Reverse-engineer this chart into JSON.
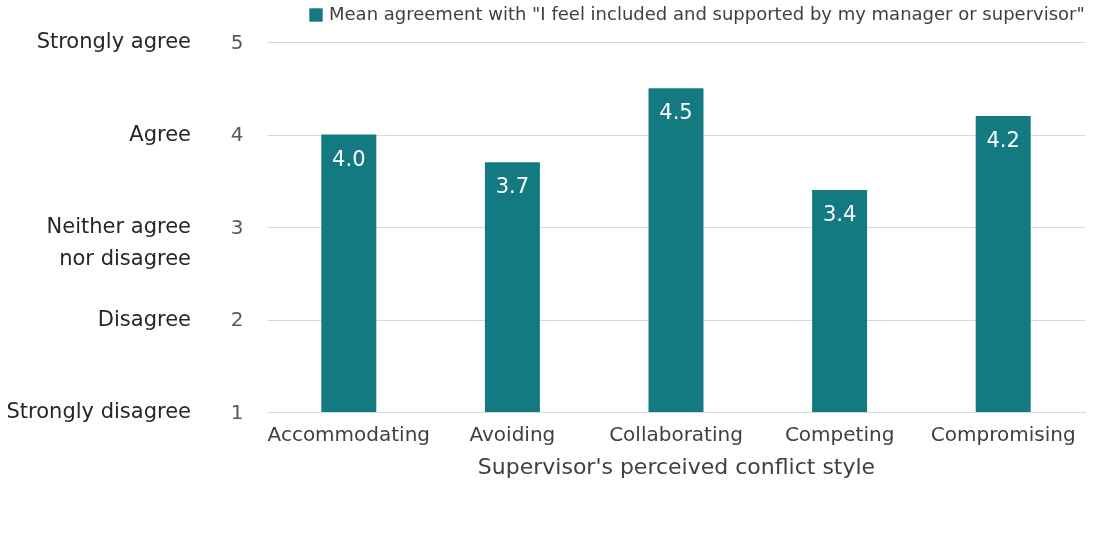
{
  "chart_data": {
    "type": "bar",
    "xlabel": "Supervisor's perceived conflict style",
    "categories": [
      "Accommodating",
      "Avoiding",
      "Collaborating",
      "Competing",
      "Compromising"
    ],
    "series": [
      {
        "name": "Mean agreement with \"I feel included and supported by my manager or supervisor\"",
        "color": "#137a82",
        "values": [
          4.0,
          3.7,
          4.5,
          3.4,
          4.2
        ],
        "value_labels": [
          "4.0",
          "3.7",
          "4.5",
          "3.4",
          "4.2"
        ]
      }
    ],
    "ylim": [
      1,
      5
    ],
    "yticks": [
      1,
      2,
      3,
      4,
      5
    ],
    "annotations": [
      "Strongly disagree",
      "Disagree",
      "Neither agree nor disagree",
      "Agree",
      "Strongly agree"
    ],
    "grid": "y",
    "legend": "top",
    "data_labels": true
  }
}
